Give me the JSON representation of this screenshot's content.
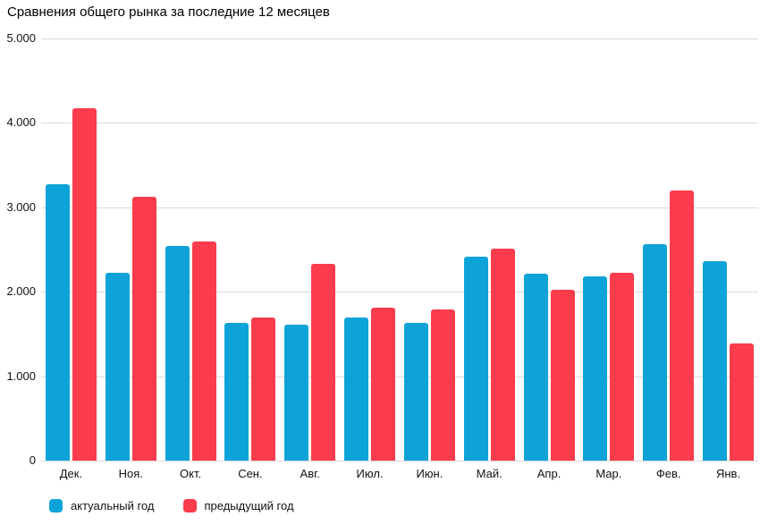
{
  "title": "Сравнения общего рынка за последние 12 месяцев",
  "colors": {
    "current_year": "#0ea3d8",
    "previous_year": "#fa3c4c",
    "gridline": "#d9d9d9",
    "text": "#111111",
    "background": "#ffffff"
  },
  "legend": {
    "items": [
      {
        "label": "актуальный год",
        "color": "#0ea3d8"
      },
      {
        "label": "предыдущий год",
        "color": "#fa3c4c"
      }
    ]
  },
  "chart_data": {
    "type": "bar",
    "title": "Сравнения общего рынка за последние 12 месяцев",
    "categories": [
      "Дек.",
      "Ноя.",
      "Окт.",
      "Сен.",
      "Авг.",
      "Июл.",
      "Июн.",
      "Май.",
      "Апр.",
      "Мар.",
      "Фев.",
      "Янв."
    ],
    "series": [
      {
        "name": "актуальный год",
        "color": "#0ea3d8",
        "values": [
          3270,
          2220,
          2540,
          1630,
          1610,
          1690,
          1630,
          2420,
          2210,
          2180,
          2560,
          2360
        ]
      },
      {
        "name": "предыдущий год",
        "color": "#fa3c4c",
        "values": [
          4170,
          3130,
          2600,
          1700,
          2330,
          1810,
          1790,
          2510,
          2020,
          2230,
          3200,
          1390
        ]
      }
    ],
    "xlabel": "",
    "ylabel": "",
    "ylim": [
      0,
      5000
    ],
    "y_ticks": [
      {
        "value": 0,
        "label": "0"
      },
      {
        "value": 1000,
        "label": "1.000"
      },
      {
        "value": 2000,
        "label": "2.000"
      },
      {
        "value": 3000,
        "label": "3.000"
      },
      {
        "value": 4000,
        "label": "4.000"
      },
      {
        "value": 5000,
        "label": "5.000"
      }
    ],
    "grid": "horizontal",
    "legend_position": "bottom-left"
  }
}
